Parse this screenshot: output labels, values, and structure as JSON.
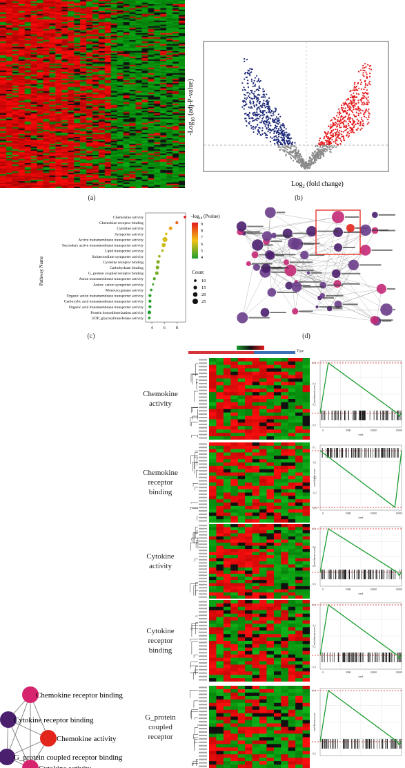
{
  "panel_labels": {
    "a": "(a)",
    "b": "(b)",
    "c": "(c)",
    "d": "(d)"
  },
  "volcano": {
    "xlabel": "Log",
    "xlabel_sub": "2",
    "xlabel_rest": " (fold change)",
    "ylabel": "-Log",
    "ylabel_sub": "10",
    "ylabel_rest": " (adj-P-value)"
  },
  "chart_data": {
    "type": "scatter",
    "title": "",
    "ylabel": "Pathway Name",
    "xlabel": "",
    "x_ticks": [
      4,
      6,
      8
    ],
    "xlim": [
      3,
      9.4
    ],
    "color_legend_title": "-log",
    "color_legend_sub": "10",
    "color_legend_rest": " (Pvalue)",
    "color_ticks": [
      9,
      8,
      7,
      6,
      5,
      4
    ],
    "size_legend_title": "Count",
    "size_ticks": [
      10,
      15,
      20,
      25
    ],
    "categories": [
      "Chemokine activity",
      "Chemokine receptor binding",
      "Cytokine activity",
      "Symporter activity",
      "Active transmembrane transporter activity",
      "Secondary active transmembrane transporter activity",
      "Lipid transporter activity",
      "Solute:sodium symporter activity",
      "Cytokine receptor binding",
      "Carbohydrate binding",
      "G_protein coupled receptor binding",
      "Anion transmembrane transporter activity",
      "Anion: cation symporter activity",
      "Monooxygenase activity",
      "Organic anion transmembrane transporter activity",
      "Carboxylic acid transmembrane transporter activity",
      "Organic acid transmembrane transporter activity",
      "Protein homodimerization activity",
      "UDP_glycosyltransferase activity"
    ],
    "x": [
      9.3,
      8.0,
      7.0,
      6.3,
      6.1,
      5.9,
      5.7,
      5.2,
      5.0,
      4.9,
      4.8,
      4.4,
      4.2,
      3.9,
      3.7,
      3.7,
      3.7,
      3.6,
      3.6
    ],
    "neglog10p": [
      9.3,
      8.0,
      7.0,
      6.3,
      6.1,
      5.9,
      5.7,
      5.2,
      5.0,
      4.9,
      4.8,
      4.4,
      4.2,
      3.9,
      3.7,
      3.7,
      3.7,
      3.6,
      3.6
    ],
    "count": [
      10,
      12,
      15,
      10,
      22,
      18,
      10,
      10,
      15,
      15,
      15,
      12,
      8,
      10,
      12,
      12,
      12,
      15,
      10
    ]
  },
  "gsea": {
    "heatmap_title": "Type",
    "rows": [
      {
        "name": "Chemokine activity",
        "lines": [
          "Chemokine",
          "activity"
        ],
        "x_ticks": [
          "0",
          "5000",
          "10000",
          "15000"
        ],
        "xlabel": "rank",
        "ylabel": "enrichment score",
        "y_ticks": [
          "0.6",
          "0.4",
          "0.2",
          "0.0"
        ]
      },
      {
        "name": "Chemokine receptor binding",
        "lines": [
          "Chemokine",
          "receptor",
          "binding"
        ],
        "x_ticks": [
          "0",
          "5000",
          "10000",
          "15000"
        ],
        "xlabel": "rank",
        "ylabel": "enrichment score",
        "y_ticks": [
          "0.1",
          "-0.1",
          "-0.2",
          "-0.3",
          "-0.4"
        ]
      },
      {
        "name": "Cytokine activity",
        "lines": [
          "Cytokine",
          "activity"
        ],
        "x_ticks": [
          "0",
          "5000",
          "10000",
          "15000"
        ],
        "xlabel": "rank",
        "ylabel": "enrichment score",
        "y_ticks": [
          "0.6",
          "0.4",
          "0.2",
          "0.0"
        ]
      },
      {
        "name": "Cytokine receptor binding",
        "lines": [
          "Cytokine",
          "receptor",
          "binding"
        ],
        "x_ticks": [
          "0",
          "5000",
          "10000",
          "15000"
        ],
        "xlabel": "rank",
        "ylabel": "enrichment score",
        "y_ticks": [
          "0.6",
          "0.4",
          "0.2",
          "0.0"
        ]
      },
      {
        "name": "G_protein coupled receptor",
        "lines": [
          "G_protein",
          "coupled",
          "receptor"
        ],
        "x_ticks": [],
        "xlabel": "",
        "ylabel": "enrichment score",
        "y_ticks": [
          "0.4",
          "0.2"
        ]
      }
    ]
  },
  "network": {
    "nodes": [
      {
        "label": "Chemokine receptor binding",
        "color": "#d6246e"
      },
      {
        "label": "Cytokine receptor binding",
        "color": "#4a1f6e"
      },
      {
        "label": "Chemokine activity",
        "color": "#e3261c"
      },
      {
        "label": "G_protein coupled receptor binding",
        "color": "#4a1f6e"
      },
      {
        "label": "Cytokine activity",
        "color": "#d6246e"
      }
    ]
  },
  "colors": {
    "up": "#e41a1c",
    "down": "#1a9c2e",
    "blue": "#1f2a7a",
    "purple": "#4a1f6e",
    "magenta": "#c42a76"
  }
}
